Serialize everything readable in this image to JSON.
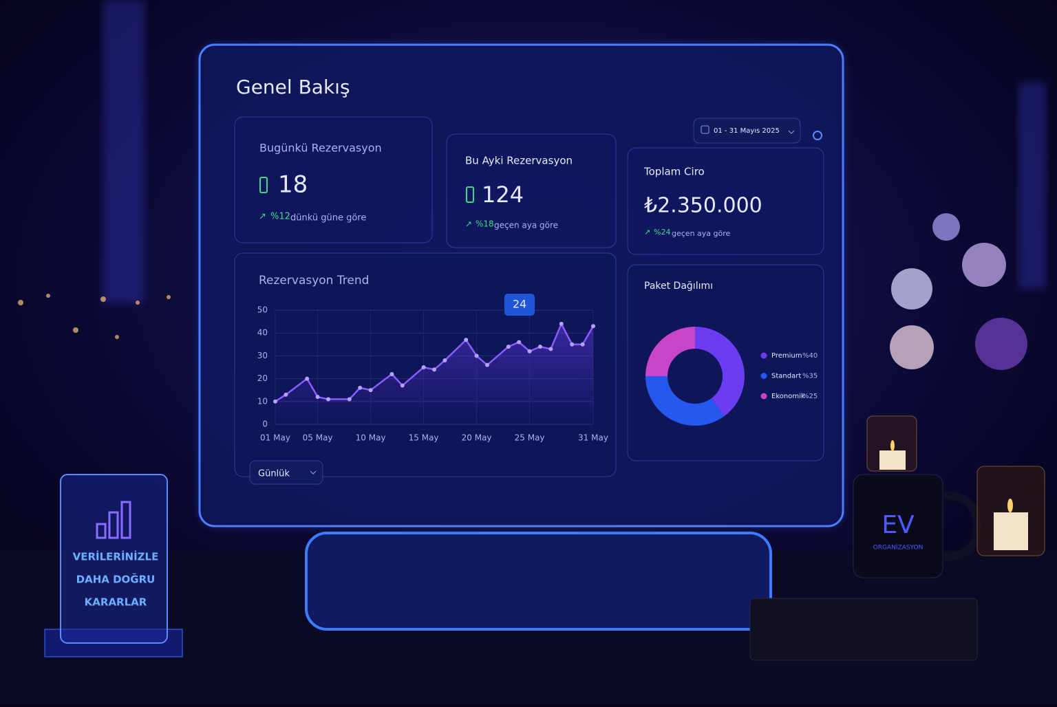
{
  "header": {
    "title": "Genel Bakış",
    "date_range": "01 - 31 Mayıs 2025"
  },
  "kpis": [
    {
      "label": "Bugünkü Rezervasyon",
      "value": "18",
      "change": "%12",
      "note": "dünkü güne göre"
    },
    {
      "label": "Bu Ayki Rezervasyon",
      "value": "124",
      "change": "%18",
      "note": "geçen aya göre"
    },
    {
      "label": "Toplam Ciro",
      "value": "₺2.350.000",
      "change": "%24",
      "note": "geçen aya göre"
    }
  ],
  "chart_data": [
    {
      "type": "line",
      "title": "Rezervasyon Trend",
      "color": "#8a5cff",
      "x": [
        1,
        2,
        4,
        5,
        6,
        8,
        9,
        10,
        12,
        13,
        15,
        16,
        17,
        19,
        20,
        21,
        23,
        24,
        25,
        26,
        27,
        28,
        29,
        30,
        31
      ],
      "values": [
        10,
        13,
        20,
        12,
        11,
        11,
        16,
        15,
        22,
        17,
        25,
        24,
        28,
        37,
        30,
        26,
        34,
        36,
        32,
        34,
        33,
        44,
        35,
        35,
        43
      ],
      "xlim": [
        1,
        31
      ],
      "xticks": [
        {
          "value": 1,
          "label": "01 May"
        },
        {
          "value": 5,
          "label": "05 May"
        },
        {
          "value": 10,
          "label": "10 May"
        },
        {
          "value": 15,
          "label": "15 May"
        },
        {
          "value": 20,
          "label": "20 May"
        },
        {
          "value": 25,
          "label": "25 May"
        },
        {
          "value": 31,
          "label": "31 May"
        }
      ],
      "ylim": [
        0,
        50
      ],
      "yticks": [
        0,
        10,
        20,
        30,
        40,
        50
      ],
      "grid": true,
      "annotation": "24",
      "dropdown": "Günlük"
    },
    {
      "type": "pie",
      "title": "Paket Dağılımı",
      "categories": [
        "Premium",
        "Standart",
        "Ekonomik"
      ],
      "values": [
        40,
        35,
        25
      ],
      "value_labels": [
        "%40",
        "%35",
        "%25"
      ],
      "colors": [
        "#6b3cf0",
        "#2458ee",
        "#c845c9"
      ]
    }
  ],
  "sign": {
    "lines": [
      "VERİLERİNİZLE",
      "DAHA DOĞRU",
      "KARARLAR"
    ]
  },
  "mug": {
    "logo": "EV",
    "text": "ORGANİZASYON"
  }
}
